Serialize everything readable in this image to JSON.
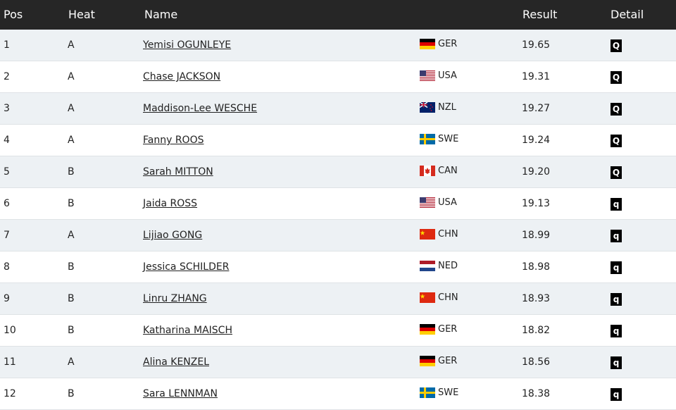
{
  "header": {
    "columns": [
      "Pos",
      "Heat",
      "Name",
      "Result",
      "Detail"
    ]
  },
  "table": {
    "rows": [
      {
        "pos": "1",
        "heat": "A",
        "name": "Yemisi OGUNLEYE",
        "country": "GER",
        "result": "19.65",
        "detail": "Q"
      },
      {
        "pos": "2",
        "heat": "A",
        "name": "Chase JACKSON",
        "country": "USA",
        "result": "19.31",
        "detail": "Q"
      },
      {
        "pos": "3",
        "heat": "A",
        "name": "Maddison-Lee WESCHE",
        "country": "NZL",
        "result": "19.27",
        "detail": "Q"
      },
      {
        "pos": "4",
        "heat": "A",
        "name": "Fanny ROOS",
        "country": "SWE",
        "result": "19.24",
        "detail": "Q"
      },
      {
        "pos": "5",
        "heat": "B",
        "name": "Sarah MITTON",
        "country": "CAN",
        "result": "19.20",
        "detail": "Q"
      },
      {
        "pos": "6",
        "heat": "B",
        "name": "Jaida ROSS",
        "country": "USA",
        "result": "19.13",
        "detail": "q"
      },
      {
        "pos": "7",
        "heat": "A",
        "name": "Lijiao GONG",
        "country": "CHN",
        "result": "18.99",
        "detail": "q"
      },
      {
        "pos": "8",
        "heat": "B",
        "name": "Jessica SCHILDER",
        "country": "NED",
        "result": "18.98",
        "detail": "q"
      },
      {
        "pos": "9",
        "heat": "B",
        "name": "Linru ZHANG",
        "country": "CHN",
        "result": "18.93",
        "detail": "q"
      },
      {
        "pos": "10",
        "heat": "B",
        "name": "Katharina MAISCH",
        "country": "GER",
        "result": "18.82",
        "detail": "q"
      },
      {
        "pos": "11",
        "heat": "A",
        "name": "Alina KENZEL",
        "country": "GER",
        "result": "18.56",
        "detail": "q"
      },
      {
        "pos": "12",
        "heat": "B",
        "name": "Sara LENNMAN",
        "country": "SWE",
        "result": "18.38",
        "detail": "q"
      }
    ]
  }
}
